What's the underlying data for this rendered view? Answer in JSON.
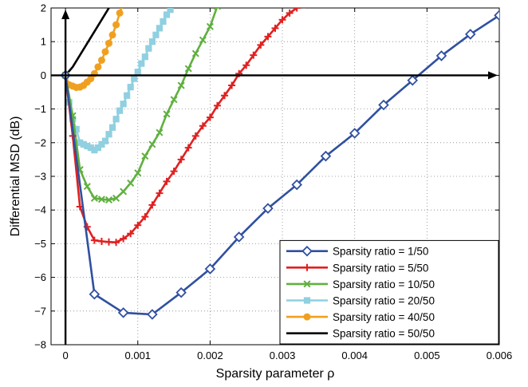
{
  "chart_data": {
    "type": "line",
    "xlabel": "Sparsity parameter  ρ",
    "ylabel": "Differential  MSD (dB)",
    "xlim": [
      -0.0002,
      0.006
    ],
    "ylim": [
      -8,
      2
    ],
    "xticks": [
      0,
      0.001,
      0.002,
      0.003,
      0.004,
      0.005,
      0.006
    ],
    "xtick_labels": [
      "0",
      "0.001",
      "0.002",
      "0.003",
      "0.004",
      "0.005",
      "0.006"
    ],
    "yticks": [
      -8,
      -7,
      -6,
      -5,
      -4,
      -3,
      -2,
      -1,
      0,
      1,
      2
    ],
    "ytick_labels": [
      "−8",
      "−7",
      "−6",
      "−5",
      "−4",
      "−3",
      "−2",
      "−1",
      "0",
      "1",
      "2"
    ],
    "grid": true,
    "legend_position": "bottom-right",
    "axis_arrows": true,
    "series": [
      {
        "name": "Sparsity ratio = 1/50",
        "color": "#3050a0",
        "marker": "diamond",
        "x": [
          0,
          0.0004,
          0.0008,
          0.0012,
          0.0016,
          0.002,
          0.0024,
          0.0028,
          0.0032,
          0.0036,
          0.004,
          0.0044,
          0.0048,
          0.0052,
          0.0056,
          0.006
        ],
        "y": [
          0,
          -6.5,
          -7.05,
          -7.1,
          -6.45,
          -5.75,
          -4.8,
          -3.95,
          -3.25,
          -2.4,
          -1.72,
          -0.88,
          -0.15,
          0.58,
          1.22,
          1.78
        ]
      },
      {
        "name": "Sparsity ratio = 5/50",
        "color": "#e02020",
        "marker": "plus",
        "x": [
          0,
          0.0001,
          0.0002,
          0.0003,
          0.0004,
          0.0005,
          0.0006,
          0.0007,
          0.0008,
          0.0009,
          0.001,
          0.0011,
          0.0012,
          0.0013,
          0.0014,
          0.0015,
          0.0016,
          0.0017,
          0.0018,
          0.0019,
          0.002,
          0.0021,
          0.0022,
          0.0023,
          0.0024,
          0.0025,
          0.0026,
          0.0027,
          0.0028,
          0.0029,
          0.003,
          0.0031,
          0.0032,
          0.0033
        ],
        "y": [
          0,
          -1.8,
          -3.9,
          -4.5,
          -4.9,
          -4.93,
          -4.95,
          -4.96,
          -4.85,
          -4.7,
          -4.45,
          -4.2,
          -3.85,
          -3.5,
          -3.15,
          -2.85,
          -2.5,
          -2.15,
          -1.8,
          -1.5,
          -1.25,
          -0.9,
          -0.6,
          -0.3,
          0.05,
          0.3,
          0.6,
          0.9,
          1.15,
          1.4,
          1.65,
          1.85,
          2.0,
          2.1
        ]
      },
      {
        "name": "Sparsity ratio = 10/50",
        "color": "#60b040",
        "marker": "x",
        "x": [
          0,
          0.0001,
          0.0002,
          0.0003,
          0.0004,
          0.0005,
          0.0006,
          0.0007,
          0.0008,
          0.0009,
          0.001,
          0.0011,
          0.0012,
          0.0013,
          0.0014,
          0.0015,
          0.0016,
          0.0017,
          0.0018,
          0.0019,
          0.002,
          0.0021
        ],
        "y": [
          0,
          -1.2,
          -2.8,
          -3.3,
          -3.65,
          -3.68,
          -3.7,
          -3.65,
          -3.45,
          -3.2,
          -2.9,
          -2.4,
          -2.05,
          -1.7,
          -1.15,
          -0.72,
          -0.3,
          0.2,
          0.65,
          1.05,
          1.45,
          2.05
        ]
      },
      {
        "name": "Sparsity ratio = 20/50",
        "color": "#90d0e0",
        "marker": "square",
        "x": [
          0,
          5e-05,
          0.0001,
          0.00015,
          0.0002,
          0.00025,
          0.0003,
          0.00035,
          0.0004,
          0.00045,
          0.0005,
          0.00055,
          0.0006,
          0.00065,
          0.0007,
          0.00075,
          0.0008,
          0.00085,
          0.0009,
          0.00095,
          0.001,
          0.00105,
          0.0011,
          0.00115,
          0.0012,
          0.00125,
          0.0013,
          0.00135,
          0.0014,
          0.00145,
          0.0015
        ],
        "y": [
          0,
          -0.8,
          -1.3,
          -1.6,
          -2.0,
          -2.05,
          -2.1,
          -2.15,
          -2.22,
          -2.15,
          -2.05,
          -1.95,
          -1.75,
          -1.55,
          -1.3,
          -1.05,
          -0.85,
          -0.6,
          -0.35,
          -0.1,
          0.1,
          0.35,
          0.55,
          0.8,
          1.0,
          1.2,
          1.4,
          1.6,
          1.8,
          1.95,
          2.1
        ]
      },
      {
        "name": "Sparsity ratio = 40/50",
        "color": "#f0a020",
        "marker": "circle",
        "x": [
          0,
          5e-05,
          0.0001,
          0.00015,
          0.0002,
          0.00025,
          0.0003,
          0.00035,
          0.0004,
          0.00045,
          0.0005,
          0.00055,
          0.0006,
          0.00065,
          0.0007,
          0.00075,
          0.0008
        ],
        "y": [
          0,
          -0.28,
          -0.32,
          -0.36,
          -0.35,
          -0.3,
          -0.2,
          -0.1,
          0.05,
          0.25,
          0.45,
          0.7,
          0.95,
          1.2,
          1.5,
          1.85,
          2.15
        ]
      },
      {
        "name": "Sparsity ratio = 50/50",
        "color": "#000000",
        "marker": "none",
        "x": [
          0,
          0.0001,
          0.0002,
          0.0003,
          0.0004,
          0.0005,
          0.0006
        ],
        "y": [
          0,
          0.25,
          0.6,
          0.95,
          1.3,
          1.65,
          2.0
        ]
      }
    ]
  }
}
